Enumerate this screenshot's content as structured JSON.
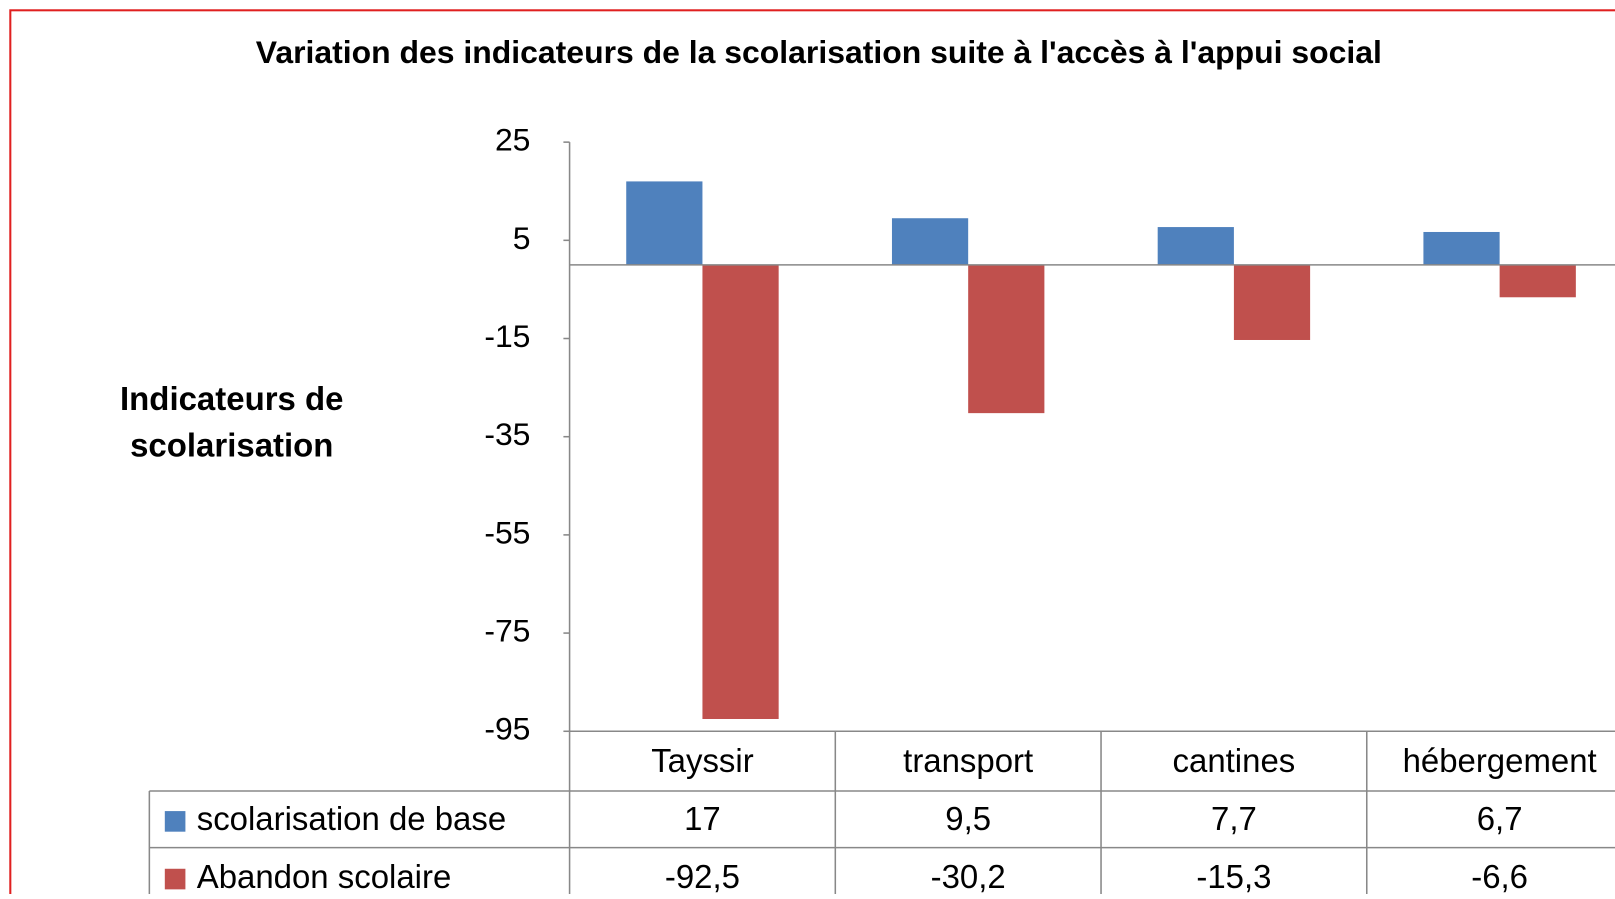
{
  "chart_data": {
    "type": "bar",
    "title": "Variation des indicateurs de la scolarisation suite à l'accès à l'appui social",
    "y_label": "Indicateurs de scolarisation",
    "categories": [
      "Tayssir",
      "transport",
      "cantines",
      "hébergement"
    ],
    "series": [
      {
        "name": "scolarisation de base",
        "color": "#4f81bd",
        "values": [
          17,
          9.5,
          7.7,
          6.7
        ],
        "value_labels": [
          "17",
          "9,5",
          "7,7",
          "6,7"
        ]
      },
      {
        "name": "Abandon scolaire",
        "color": "#c0504d",
        "values": [
          -92.5,
          -30.2,
          -15.3,
          -6.6
        ],
        "value_labels": [
          "-92,5",
          "-30,2",
          "-15,3",
          "-6,6"
        ]
      }
    ],
    "ylim": [
      -95,
      25
    ],
    "yticks": [
      -95,
      -75,
      -55,
      -35,
      -15,
      5,
      25
    ],
    "grid": false,
    "data_table": true
  }
}
